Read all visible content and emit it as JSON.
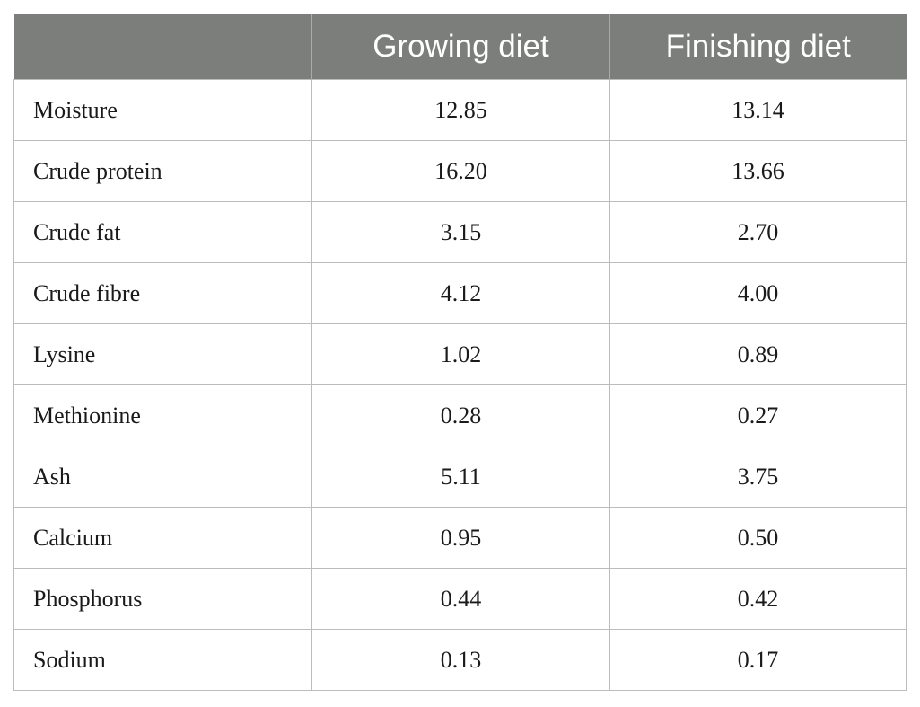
{
  "table": {
    "headers": [
      "",
      "Growing diet",
      "Finishing diet"
    ],
    "rows": [
      [
        "Moisture",
        "12.85",
        "13.14"
      ],
      [
        "Crude protein",
        "16.20",
        "13.66"
      ],
      [
        "Crude fat",
        "3.15",
        "2.70"
      ],
      [
        "Crude fibre",
        "4.12",
        "4.00"
      ],
      [
        "Lysine",
        "1.02",
        "0.89"
      ],
      [
        "Methionine",
        "0.28",
        "0.27"
      ],
      [
        "Ash",
        "5.11",
        "3.75"
      ],
      [
        "Calcium",
        "0.95",
        "0.50"
      ],
      [
        "Phosphorus",
        "0.44",
        "0.42"
      ],
      [
        "Sodium",
        "0.13",
        "0.17"
      ]
    ]
  },
  "colors": {
    "header_background": "#7c7e7b",
    "header_text": "#ffffff",
    "border": "#bcbcbc"
  }
}
